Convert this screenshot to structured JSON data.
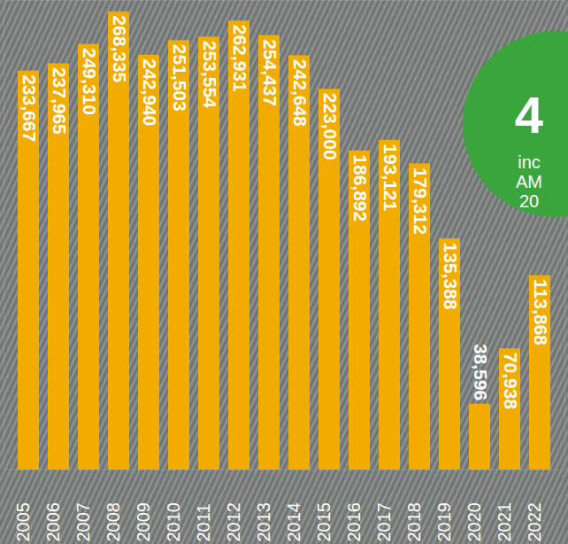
{
  "chart_data": {
    "type": "bar",
    "categories": [
      "2005",
      "2006",
      "2007",
      "2008",
      "2009",
      "2010",
      "2011",
      "2012",
      "2013",
      "2014",
      "2015",
      "2016",
      "2017",
      "2018",
      "2019",
      "2020",
      "2021",
      "2022"
    ],
    "values": [
      233667,
      237965,
      249310,
      268335,
      242940,
      251503,
      253554,
      262931,
      254437,
      242648,
      223000,
      186892,
      193121,
      179312,
      135388,
      38596,
      70938,
      113868
    ],
    "value_labels": [
      "233,667",
      "237,965",
      "249,310",
      "268,335",
      "242,940",
      "251,503",
      "253,554",
      "262,931",
      "254,437",
      "242,648",
      "223,000",
      "186,892",
      "193,121",
      "179,312",
      "135,388",
      "38,596",
      "70,938",
      "113,868"
    ],
    "color": "#f2ac00",
    "ylim": [
      0,
      275000
    ],
    "yticks": [],
    "tick_labels": false,
    "data_labels": true,
    "annotations": [
      "4",
      "inc",
      "AM",
      "20"
    ]
  }
}
